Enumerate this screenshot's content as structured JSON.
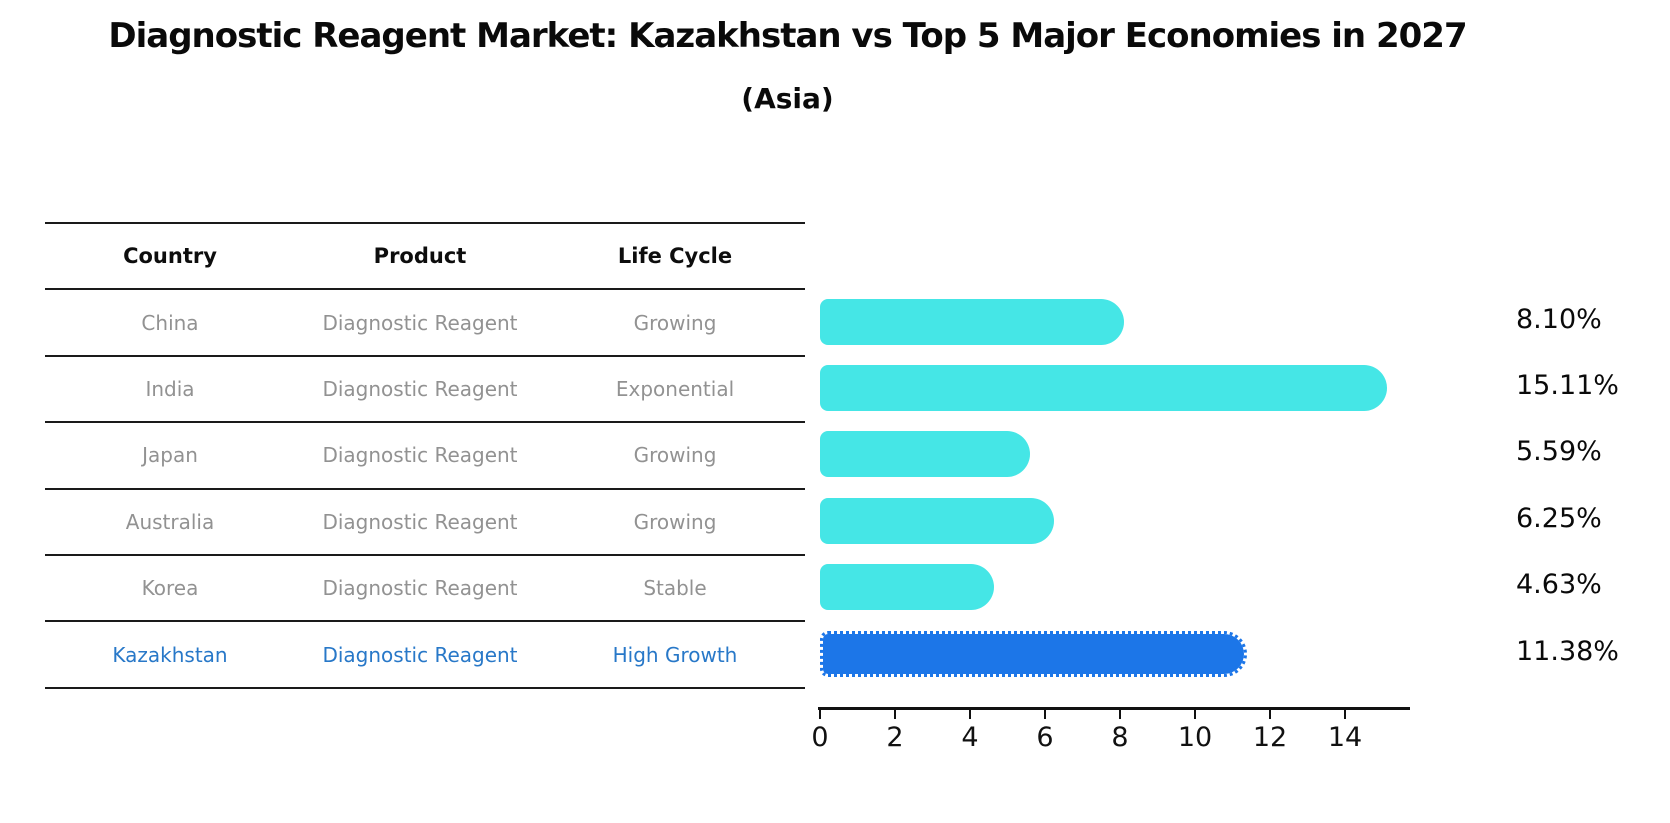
{
  "title": "Diagnostic Reagent Market: Kazakhstan vs Top 5 Major Economies in 2027",
  "subtitle": "(Asia)",
  "table": {
    "headers": [
      "Country",
      "Product",
      "Life Cycle"
    ],
    "rows": [
      {
        "country": "China",
        "product": "Diagnostic Reagent",
        "life_cycle": "Growing",
        "highlight": false
      },
      {
        "country": "India",
        "product": "Diagnostic Reagent",
        "life_cycle": "Exponential",
        "highlight": false
      },
      {
        "country": "Japan",
        "product": "Diagnostic Reagent",
        "life_cycle": "Growing",
        "highlight": false
      },
      {
        "country": "Australia",
        "product": "Diagnostic Reagent",
        "life_cycle": "Growing",
        "highlight": false
      },
      {
        "country": "Korea",
        "product": "Diagnostic Reagent",
        "life_cycle": "Stable",
        "highlight": false
      },
      {
        "country": "Kazakhstan",
        "product": "Diagnostic Reagent",
        "life_cycle": "High Growth",
        "highlight": true
      }
    ]
  },
  "chart_data": {
    "type": "bar",
    "orientation": "horizontal",
    "title": "Diagnostic Reagent Market: Kazakhstan vs Top 5 Major Economies in 2027",
    "subtitle": "(Asia)",
    "categories": [
      "China",
      "India",
      "Japan",
      "Australia",
      "Korea",
      "Kazakhstan"
    ],
    "values": [
      8.1,
      15.11,
      5.59,
      6.25,
      4.63,
      11.38
    ],
    "value_labels": [
      "8.10%",
      "15.11%",
      "5.59%",
      "6.25%",
      "4.63%",
      "11.38%"
    ],
    "highlight_index": 5,
    "xlabel": "",
    "ylabel": "",
    "xlim": [
      0,
      15.6
    ],
    "xticks": [
      0,
      2,
      4,
      6,
      8,
      10,
      12,
      14
    ],
    "grid": false,
    "legend": false,
    "bar_color_default": "#45e6e6",
    "bar_color_highlight": "#1c76e8",
    "highlight_text_color": "#2878c8",
    "table_text_color": "#929292"
  }
}
